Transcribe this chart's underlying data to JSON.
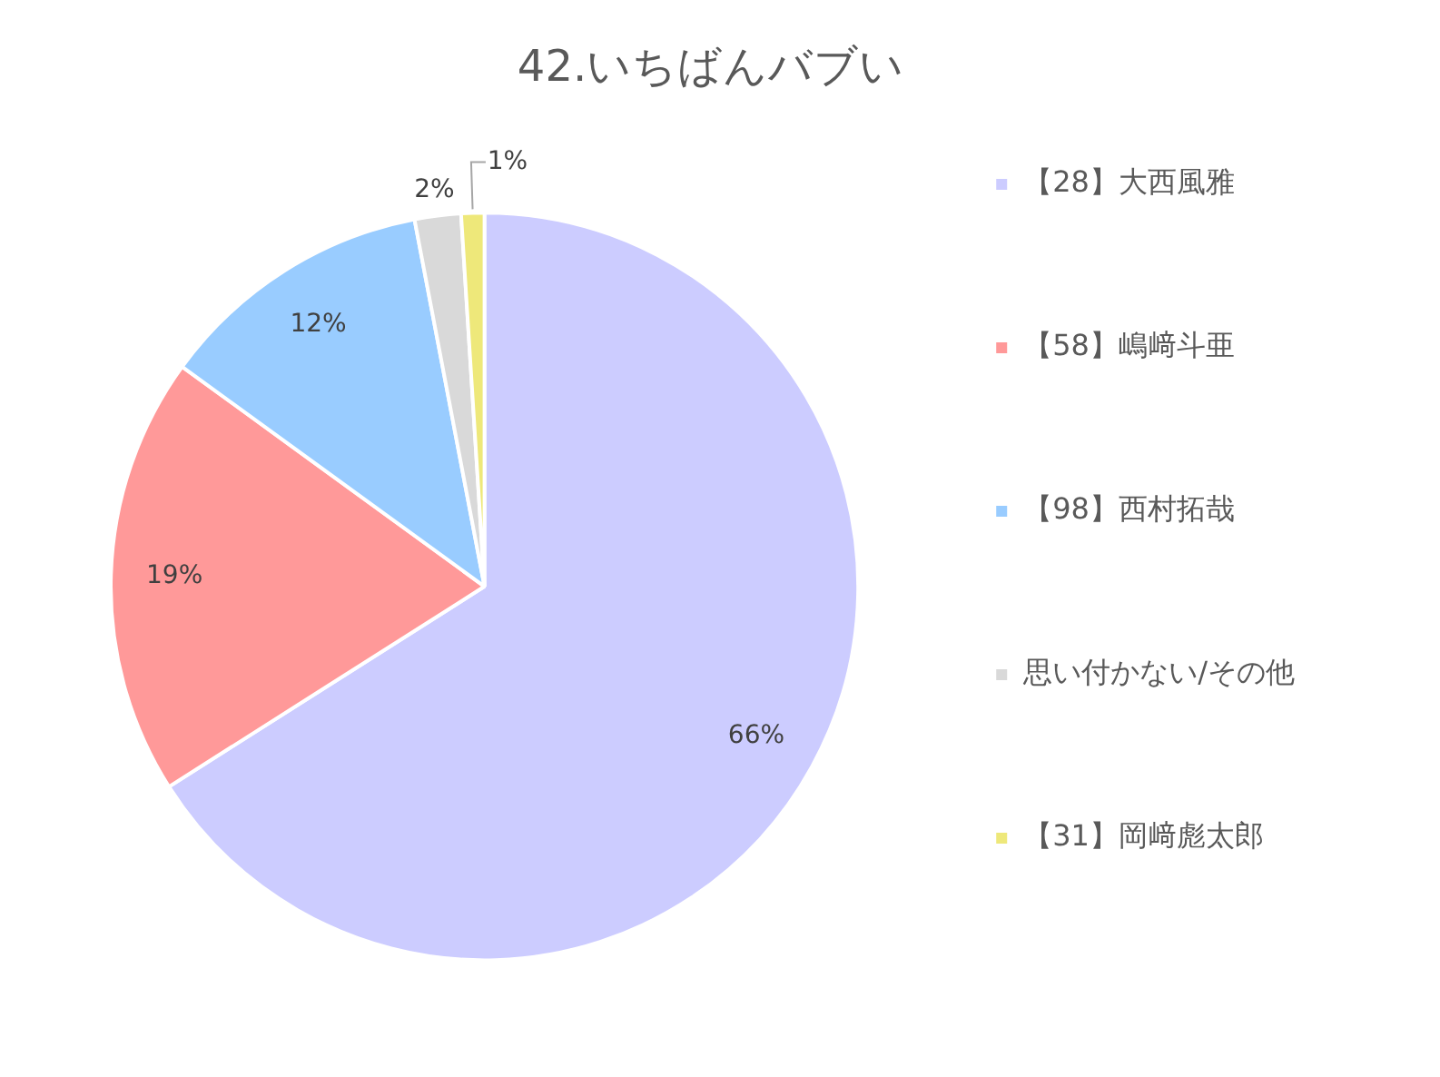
{
  "chart_data": {
    "type": "pie",
    "title": "42.いちばんバブい",
    "categories": [
      "【28】大西風雅",
      "【58】嶋﨑斗亜",
      "【98】西村拓哉",
      "思い付かない/その他",
      "【31】岡﨑彪太郎"
    ],
    "values": [
      66,
      19,
      12,
      2,
      1
    ],
    "colors": [
      "#ccccff",
      "#ff9999",
      "#99ccff",
      "#d9d9d9",
      "#eee87a"
    ],
    "value_labels": [
      "66%",
      "19%",
      "12%",
      "2%",
      "1%"
    ],
    "legend": "right"
  }
}
